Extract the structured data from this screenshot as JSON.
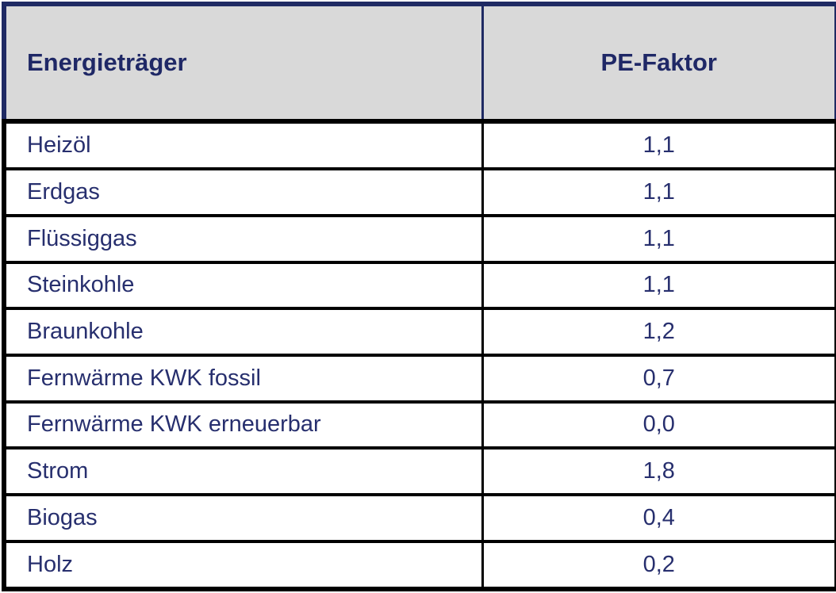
{
  "table": {
    "headers": {
      "energy_carrier": "Energieträger",
      "pe_factor": "PE-Faktor"
    },
    "rows": [
      {
        "label": "Heizöl",
        "value": "1,1"
      },
      {
        "label": "Erdgas",
        "value": "1,1"
      },
      {
        "label": "Flüssiggas",
        "value": "1,1"
      },
      {
        "label": "Steinkohle",
        "value": "1,1"
      },
      {
        "label": "Braunkohle",
        "value": "1,2"
      },
      {
        "label": "Fernwärme KWK fossil",
        "value": "0,7"
      },
      {
        "label": "Fernwärme KWK erneuerbar",
        "value": "0,0"
      },
      {
        "label": "Strom",
        "value": "1,8"
      },
      {
        "label": "Biogas",
        "value": "0,4"
      },
      {
        "label": "Holz",
        "value": "0,2"
      }
    ]
  },
  "colors": {
    "header_background": "#d9d9d9",
    "header_border_navy": "#1f2a63",
    "body_border_black": "#000000",
    "text_navy": "#272f6e",
    "page_background": "#ffffff"
  }
}
